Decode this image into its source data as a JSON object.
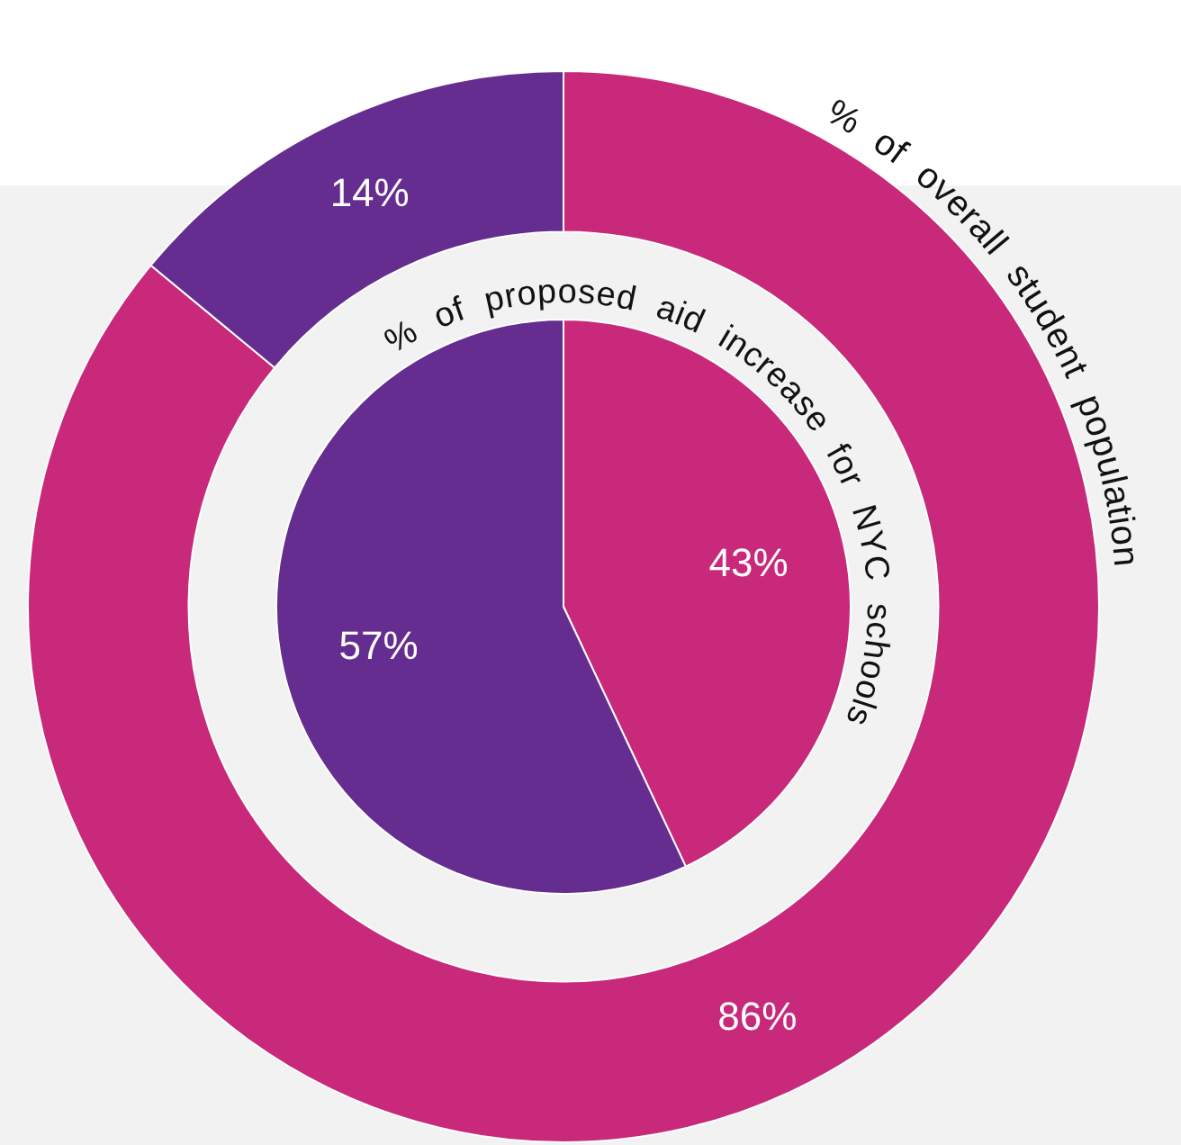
{
  "chart_data": [
    {
      "type": "donut",
      "title": "% of overall student population",
      "categories": [
        null,
        null
      ],
      "values": [
        86,
        14
      ],
      "value_labels": [
        "86%",
        "14%"
      ],
      "colors": [
        "#c8297a",
        "#652d8f"
      ]
    },
    {
      "type": "pie",
      "title": "% of proposed aid increase for NYC schools",
      "categories": [
        null,
        null
      ],
      "values": [
        43,
        57
      ],
      "value_labels": [
        "43%",
        "57%"
      ],
      "colors": [
        "#c8297a",
        "#652d8f"
      ]
    }
  ]
}
